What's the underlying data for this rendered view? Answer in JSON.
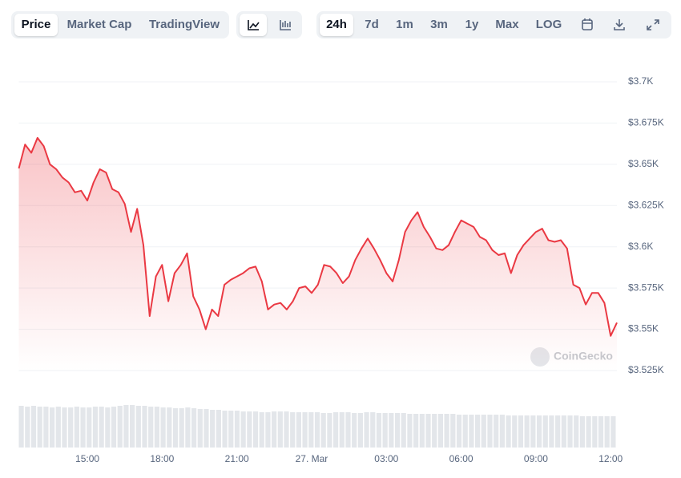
{
  "toolbar": {
    "views": [
      "Price",
      "Market Cap",
      "TradingView"
    ],
    "ranges": [
      "24h",
      "7d",
      "1m",
      "3m",
      "1y",
      "Max",
      "LOG"
    ]
  },
  "chart_data": {
    "type": "line",
    "watermark": "CoinGecko",
    "color": "#ea3943",
    "volume_color": "#e3e6ea",
    "x": [
      "12:15",
      "12:30",
      "12:45",
      "13:00",
      "13:15",
      "13:30",
      "13:45",
      "14:00",
      "14:15",
      "14:30",
      "14:45",
      "15:00",
      "15:15",
      "15:30",
      "15:45",
      "16:00",
      "16:15",
      "16:30",
      "16:45",
      "17:00",
      "17:15",
      "17:30",
      "17:45",
      "18:00",
      "18:15",
      "18:30",
      "18:45",
      "19:00",
      "19:15",
      "19:30",
      "19:45",
      "20:00",
      "20:15",
      "20:30",
      "20:45",
      "21:00",
      "21:15",
      "21:30",
      "21:45",
      "22:00",
      "22:15",
      "22:30",
      "22:45",
      "23:00",
      "23:15",
      "23:30",
      "23:45",
      "00:00",
      "00:15",
      "00:30",
      "00:45",
      "01:00",
      "01:15",
      "01:30",
      "01:45",
      "02:00",
      "02:15",
      "02:30",
      "02:45",
      "03:00",
      "03:15",
      "03:30",
      "03:45",
      "04:00",
      "04:15",
      "04:30",
      "04:45",
      "05:00",
      "05:15",
      "05:30",
      "05:45",
      "06:00",
      "06:15",
      "06:30",
      "06:45",
      "07:00",
      "07:15",
      "07:30",
      "07:45",
      "08:00",
      "08:15",
      "08:30",
      "08:45",
      "09:00",
      "09:15",
      "09:30",
      "09:45",
      "10:00",
      "10:15",
      "10:30",
      "10:45",
      "11:00",
      "11:15",
      "11:30",
      "11:45",
      "12:00",
      "12:15"
    ],
    "values": [
      3647.5,
      3662,
      3657,
      3666,
      3661,
      3650,
      3647,
      3642,
      3639,
      3633,
      3634,
      3628,
      3639,
      3647,
      3645,
      3635,
      3633,
      3626,
      3609,
      3623,
      3601,
      3558,
      3582,
      3589,
      3567,
      3584,
      3589,
      3596,
      3570,
      3562,
      3550,
      3562,
      3558,
      3577,
      3580,
      3582,
      3584,
      3587,
      3588,
      3579,
      3562,
      3565,
      3566,
      3562,
      3567,
      3575,
      3576,
      3572,
      3577,
      3589,
      3588,
      3584,
      3578,
      3582,
      3592,
      3599,
      3605,
      3599,
      3592,
      3584,
      3579,
      3592,
      3609,
      3616,
      3621,
      3612,
      3606,
      3599,
      3598,
      3601,
      3609,
      3616,
      3614,
      3612,
      3606,
      3604,
      3598,
      3595,
      3596,
      3584,
      3595,
      3601,
      3605,
      3609,
      3611,
      3604,
      3603,
      3604,
      3599,
      3577,
      3575,
      3565,
      3572,
      3572,
      3566,
      3546,
      3554
    ],
    "volumes": [
      52,
      51,
      52,
      51,
      51,
      50,
      51,
      50,
      50,
      51,
      50,
      50,
      51,
      51,
      50,
      51,
      52,
      53,
      53,
      52,
      52,
      51,
      51,
      50,
      50,
      49,
      49,
      50,
      49,
      48,
      48,
      47,
      47,
      46,
      46,
      46,
      45,
      45,
      45,
      44,
      44,
      45,
      45,
      45,
      44,
      44,
      44,
      44,
      44,
      43,
      43,
      44,
      44,
      44,
      43,
      43,
      44,
      44,
      43,
      43,
      43,
      43,
      43,
      42,
      42,
      42,
      42,
      42,
      42,
      42,
      42,
      41,
      41,
      41,
      41,
      41,
      41,
      41,
      41,
      40,
      40,
      40,
      40,
      40,
      40,
      40,
      40,
      40,
      40,
      40,
      40,
      39,
      39,
      39,
      39,
      39,
      39
    ],
    "ylim": [
      3525,
      3700
    ],
    "yticks": [
      {
        "value": 3525,
        "label": "$3.525K"
      },
      {
        "value": 3550,
        "label": "$3.55K"
      },
      {
        "value": 3575,
        "label": "$3.575K"
      },
      {
        "value": 3600,
        "label": "$3.6K"
      },
      {
        "value": 3625,
        "label": "$3.625K"
      },
      {
        "value": 3650,
        "label": "$3.65K"
      },
      {
        "value": 3675,
        "label": "$3.675K"
      },
      {
        "value": 3700,
        "label": "$3.7K"
      }
    ],
    "xticks": [
      "15:00",
      "18:00",
      "21:00",
      {
        "value": "00:00",
        "label": "27. Mar"
      },
      "03:00",
      "06:00",
      "09:00",
      "12:00"
    ],
    "grid": true
  }
}
